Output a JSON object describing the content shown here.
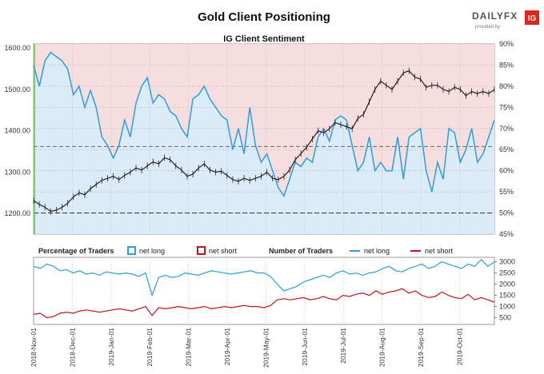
{
  "header": {
    "title": "Gold Client Positioning",
    "brand_main": "DAILYFX",
    "brand_sub": "provided by",
    "brand_badge": "IG"
  },
  "chart_data": [
    {
      "type": "line",
      "title": "IG Client Sentiment",
      "left_axis": {
        "ticks": [
          "1200.00",
          "1300.00",
          "1400.00",
          "1500.00",
          "1600.00"
        ],
        "ylim": [
          1150,
          1610
        ]
      },
      "right_axis": {
        "ticks": [
          "45%",
          "50%",
          "55%",
          "60%",
          "65%",
          "70%",
          "75%",
          "80%",
          "85%",
          "90%"
        ],
        "ylim": [
          45,
          90
        ]
      },
      "reference_lines": {
        "pct_50": 50,
        "price_dashed": 1362
      },
      "series": [
        {
          "name": "net long %",
          "axis": "right",
          "values": [
            85,
            80,
            86,
            88,
            87,
            86,
            84,
            78,
            80,
            75,
            79,
            75,
            68,
            66,
            63,
            66,
            72,
            68,
            76,
            80,
            82,
            76,
            78,
            77,
            74,
            73,
            70,
            68,
            77,
            78,
            80,
            77,
            75,
            73,
            72,
            65,
            70,
            64,
            75,
            66,
            62,
            64,
            60,
            56,
            54,
            58,
            62,
            61,
            63,
            62,
            68,
            70,
            67,
            72,
            73,
            72,
            66,
            60,
            62,
            68,
            60,
            62,
            60,
            60,
            68,
            58,
            68,
            69,
            70,
            60,
            55,
            62,
            58,
            70,
            69,
            62,
            65,
            70,
            62,
            64,
            68,
            72
          ]
        },
        {
          "name": "price",
          "axis": "left",
          "values": [
            1231,
            1222,
            1215,
            1205,
            1208,
            1215,
            1225,
            1240,
            1250,
            1245,
            1260,
            1270,
            1280,
            1285,
            1290,
            1282,
            1292,
            1300,
            1310,
            1305,
            1315,
            1325,
            1320,
            1335,
            1330,
            1315,
            1305,
            1290,
            1295,
            1310,
            1320,
            1305,
            1300,
            1302,
            1292,
            1282,
            1278,
            1285,
            1280,
            1285,
            1290,
            1300,
            1285,
            1282,
            1290,
            1305,
            1330,
            1345,
            1360,
            1380,
            1400,
            1395,
            1405,
            1420,
            1415,
            1410,
            1405,
            1430,
            1440,
            1470,
            1500,
            1520,
            1510,
            1500,
            1520,
            1540,
            1545,
            1530,
            1525,
            1505,
            1510,
            1510,
            1500,
            1495,
            1505,
            1500,
            1485,
            1495,
            1490,
            1495,
            1490,
            1500
          ]
        }
      ]
    },
    {
      "type": "line",
      "legend": {
        "pct_title": "Percentage of Traders",
        "pct_long": "net long",
        "pct_short": "net short",
        "num_title": "Number of Traders",
        "num_long": "net long",
        "num_short": "net short"
      },
      "right_axis": {
        "ticks": [
          "500",
          "1000",
          "1500",
          "2000",
          "2500",
          "3000"
        ],
        "ylim": [
          200,
          3200
        ]
      },
      "x": {
        "tick_labels": [
          "2018-Nov-01",
          "2018-Dec-01",
          "2019-Jan-01",
          "2019-Feb-01",
          "2019-Mar-01",
          "2019-Apr-01",
          "2019-May-01",
          "2019-Jun-01",
          "2019-Jul-01",
          "2019-Aug-01",
          "2019-Sep-01",
          "2019-Oct-01"
        ]
      },
      "series": [
        {
          "name": "net long",
          "values": [
            2800,
            2700,
            2900,
            2800,
            2600,
            2650,
            2500,
            2600,
            2450,
            2500,
            2400,
            2550,
            2500,
            2450,
            2500,
            2450,
            2350,
            2500,
            1500,
            2300,
            2400,
            2300,
            2350,
            2500,
            2450,
            2400,
            2500,
            2600,
            2550,
            2500,
            2450,
            2500,
            2550,
            2600,
            2500,
            2500,
            2350,
            2000,
            1700,
            1800,
            1900,
            2100,
            2200,
            2300,
            2400,
            2300,
            2500,
            2600,
            2450,
            2500,
            2400,
            2500,
            2550,
            2700,
            2800,
            2600,
            2550,
            2700,
            2800,
            2900,
            2700,
            2800,
            3000,
            2900,
            2800,
            2700,
            2900,
            2800,
            3100,
            2800,
            3000
          ]
        },
        {
          "name": "net short",
          "values": [
            650,
            700,
            500,
            550,
            700,
            750,
            700,
            800,
            850,
            800,
            750,
            800,
            850,
            900,
            850,
            800,
            900,
            1000,
            600,
            950,
            900,
            950,
            1000,
            950,
            900,
            950,
            1000,
            900,
            950,
            1000,
            950,
            1000,
            1050,
            1000,
            1000,
            950,
            1050,
            1300,
            1350,
            1300,
            1350,
            1400,
            1300,
            1350,
            1450,
            1350,
            1300,
            1500,
            1450,
            1550,
            1600,
            1500,
            1700,
            1550,
            1650,
            1700,
            1800,
            1600,
            1700,
            1500,
            1400,
            1450,
            1650,
            1500,
            1400,
            1350,
            1550,
            1300,
            1400,
            1300,
            1200
          ]
        }
      ]
    }
  ]
}
